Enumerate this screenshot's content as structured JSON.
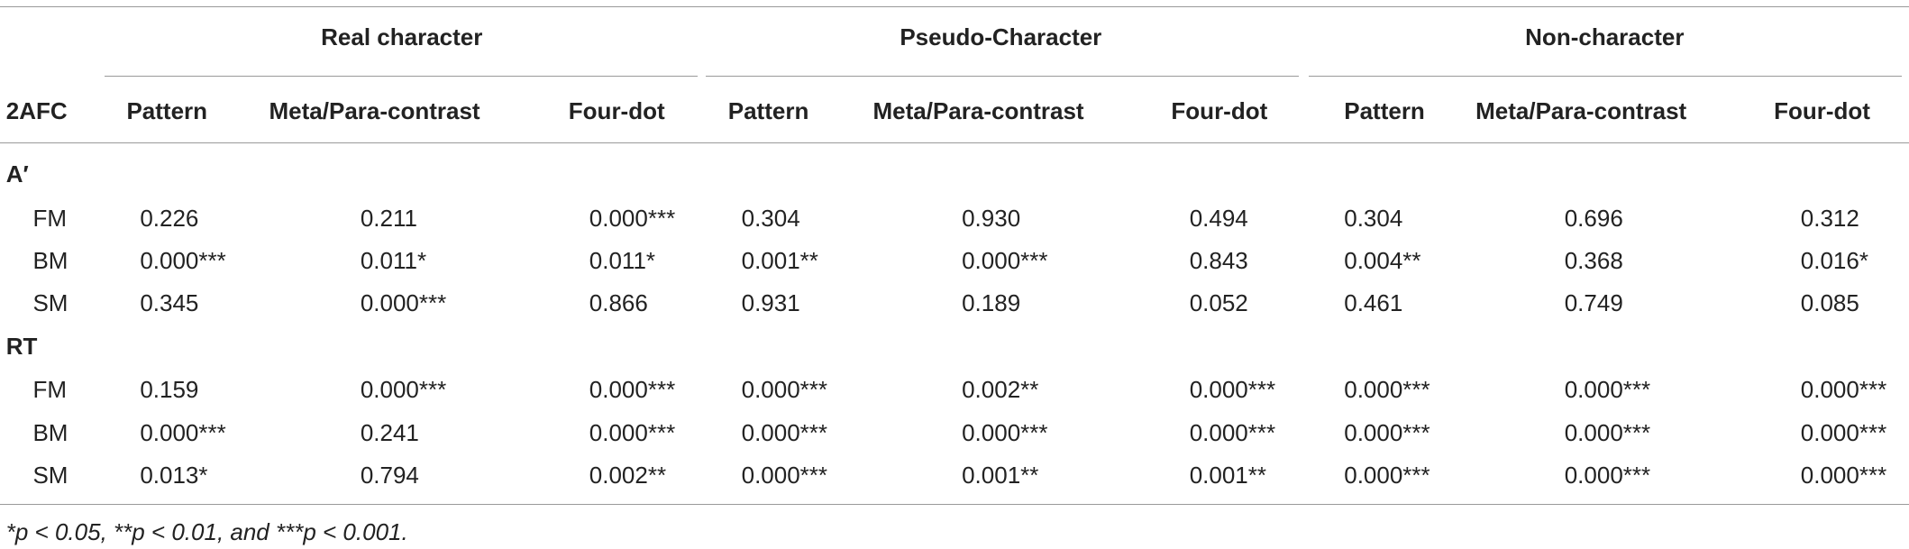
{
  "table": {
    "corner": "2AFC",
    "groups": [
      "Real character",
      "Pseudo-Character",
      "Non-character"
    ],
    "columns": [
      "Pattern",
      "Meta/Para-contrast",
      "Four-dot",
      "Pattern",
      "Meta/Para-contrast",
      "Four-dot",
      "Pattern",
      "Meta/Para-contrast",
      "Four-dot"
    ],
    "sections": [
      {
        "label": "A′",
        "rows": [
          {
            "label": "FM",
            "cells": [
              "0.226",
              "0.211",
              "0.000***",
              "0.304",
              "0.930",
              "0.494",
              "0.304",
              "0.696",
              "0.312"
            ]
          },
          {
            "label": "BM",
            "cells": [
              "0.000***",
              "0.011*",
              "0.011*",
              "0.001**",
              "0.000***",
              "0.843",
              "0.004**",
              "0.368",
              "0.016*"
            ]
          },
          {
            "label": "SM",
            "cells": [
              "0.345",
              "0.000***",
              "0.866",
              "0.931",
              "0.189",
              "0.052",
              "0.461",
              "0.749",
              "0.085"
            ]
          }
        ]
      },
      {
        "label": "RT",
        "rows": [
          {
            "label": "FM",
            "cells": [
              "0.159",
              "0.000***",
              "0.000***",
              "0.000***",
              "0.002**",
              "0.000***",
              "0.000***",
              "0.000***",
              "0.000***"
            ]
          },
          {
            "label": "BM",
            "cells": [
              "0.000***",
              "0.241",
              "0.000***",
              "0.000***",
              "0.000***",
              "0.000***",
              "0.000***",
              "0.000***",
              "0.000***"
            ]
          },
          {
            "label": "SM",
            "cells": [
              "0.013*",
              "0.794",
              "0.002**",
              "0.000***",
              "0.001**",
              "0.001**",
              "0.000***",
              "0.000***",
              "0.000***"
            ]
          }
        ]
      }
    ],
    "footnote": "*p < 0.05, **p < 0.01, and ***p < 0.001."
  }
}
